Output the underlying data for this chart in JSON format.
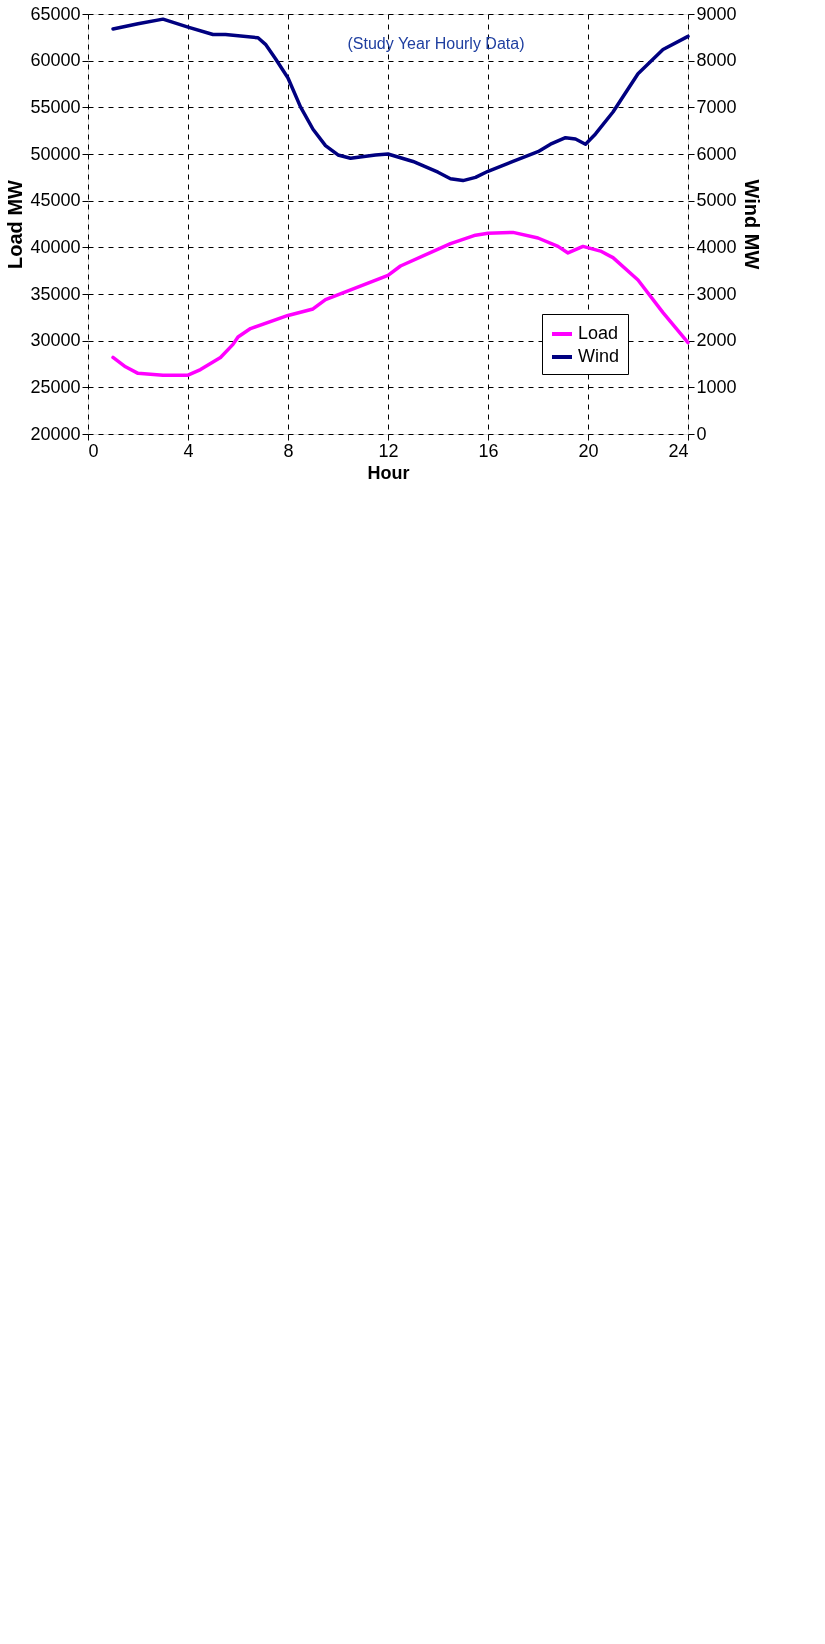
{
  "chart_data": {
    "type": "line",
    "xlabel": "Hour",
    "ylabel": "Load MW",
    "y2label": "Wind MW",
    "annotations": [
      "(Study Year Hourly Data)"
    ],
    "xlim": [
      0,
      24
    ],
    "xticks": [
      0,
      4,
      8,
      12,
      16,
      20,
      24
    ],
    "ylim": [
      20000,
      65000
    ],
    "yticks": [
      20000,
      25000,
      30000,
      35000,
      40000,
      45000,
      50000,
      55000,
      60000,
      65000
    ],
    "y2lim": [
      0,
      9000
    ],
    "y2ticks": [
      0,
      1000,
      2000,
      3000,
      4000,
      5000,
      6000,
      7000,
      8000,
      9000
    ],
    "grid": true,
    "legend": "bottom right",
    "line_style": "solid",
    "series": [
      {
        "name": "Load",
        "color": "#ff00ff",
        "x": [
          1,
          1.5,
          2,
          3,
          4,
          4.5,
          5.3,
          5.8,
          6,
          6.5,
          8,
          9,
          9.5,
          12,
          12.5,
          14.5,
          15.5,
          16,
          17,
          18,
          18.8,
          19.2,
          19.8,
          20.5,
          21,
          22,
          23,
          24
        ],
        "values": [
          28200,
          27200,
          26500,
          26300,
          26300,
          26900,
          28200,
          29600,
          30400,
          31300,
          32700,
          33400,
          34400,
          37000,
          38000,
          40400,
          41300,
          41500,
          41600,
          41000,
          40100,
          39400,
          40100,
          39600,
          38900,
          36500,
          33000,
          29800
        ]
      },
      {
        "name": "Wind",
        "color": "#000080",
        "axis": "y2",
        "x": [
          1,
          2,
          3,
          4,
          5,
          5.5,
          6.8,
          7.1,
          7.5,
          8,
          8.5,
          9,
          9.5,
          10,
          10.5,
          11.5,
          12,
          13,
          14,
          14.5,
          15,
          15.5,
          16,
          17,
          18,
          18.5,
          19.1,
          19.5,
          19.9,
          20.3,
          21,
          22,
          23,
          24
        ],
        "values": [
          8680,
          8790,
          8890,
          8720,
          8560,
          8560,
          8490,
          8350,
          8040,
          7630,
          7010,
          6530,
          6180,
          5980,
          5910,
          5980,
          6000,
          5840,
          5610,
          5470,
          5430,
          5500,
          5630,
          5840,
          6050,
          6210,
          6350,
          6320,
          6210,
          6430,
          6900,
          7720,
          8240,
          8520
        ]
      }
    ]
  }
}
